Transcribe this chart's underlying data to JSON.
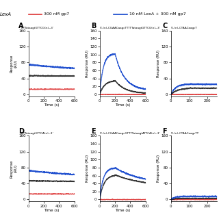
{
  "panels": [
    {
      "label": "A",
      "title": "TTTTataagtGTTCG(n)ₙ-3’",
      "title_left_cut": true,
      "ylim": [
        -5,
        160
      ],
      "yticks": [
        0,
        40,
        80,
        120,
        160
      ],
      "xlim": [
        0,
        600
      ],
      "xticks": [
        0,
        200,
        400,
        600
      ],
      "assoc_end": 200,
      "blue_peak": 75,
      "black_peak": 47,
      "red_level": 13,
      "blue_end": 56,
      "black_end": 45,
      "blue_tau_d": 900,
      "black_tau_d": 1200,
      "blue_tau_a": 55,
      "black_tau_a": 65,
      "show_xlabel": true,
      "show_ylabel": true,
      "ylabel": "Response\n(RU)"
    },
    {
      "label": "B",
      "title": "5’-(n)ₙCGAACaagcTTTTTataagtGTTCG(n)ₙ-3’",
      "title_left_cut": false,
      "ylim": [
        -5,
        160
      ],
      "yticks": [
        0,
        20,
        40,
        60,
        80,
        100,
        120,
        140,
        160
      ],
      "xlim": [
        0,
        600
      ],
      "xticks": [
        0,
        200,
        400,
        600
      ],
      "assoc_end": 200,
      "blue_peak": 103,
      "black_peak": 35,
      "red_level": 0,
      "blue_end": 10,
      "black_end": 2,
      "blue_tau_d": 120,
      "black_tau_d": 130,
      "blue_tau_a": 45,
      "black_tau_a": 60,
      "show_xlabel": true,
      "show_ylabel": true,
      "ylabel": "Response (RU)"
    },
    {
      "label": "C",
      "title": "5’-(n)ₙCTAACaagcT",
      "title_left_cut": false,
      "ylim": [
        -5,
        160
      ],
      "yticks": [
        0,
        40,
        80,
        120,
        160
      ],
      "xlim": [
        0,
        250
      ],
      "xticks": [
        0,
        100,
        200
      ],
      "assoc_end": 100,
      "blue_peak": 26,
      "black_peak": 16,
      "red_level": 0,
      "blue_end": 22,
      "black_end": 13,
      "blue_tau_d": 900,
      "black_tau_d": 1200,
      "blue_tau_a": 25,
      "black_tau_a": 35,
      "show_xlabel": false,
      "show_ylabel": true,
      "ylabel": "Response (RU)"
    },
    {
      "label": "D",
      "title": "TTTTataagtGTTCA(n)ₙ-3’",
      "title_left_cut": true,
      "ylim": [
        -5,
        160
      ],
      "yticks": [
        0,
        40,
        80,
        120,
        160
      ],
      "xlim": [
        0,
        600
      ],
      "xticks": [
        0,
        200,
        400,
        600
      ],
      "assoc_end": 200,
      "blue_peak": 73,
      "black_peak": 47,
      "red_level": 14,
      "blue_end": 52,
      "black_end": 44,
      "blue_tau_d": 900,
      "black_tau_d": 1200,
      "blue_tau_a": 55,
      "black_tau_a": 65,
      "show_xlabel": true,
      "show_ylabel": true,
      "ylabel": "Response\n(RU)"
    },
    {
      "label": "E",
      "title": "5’-(n)ₙCGAACaagcGTTTTataagtATTCA(n)ₙ-3’",
      "title_left_cut": false,
      "ylim": [
        -5,
        160
      ],
      "yticks": [
        0,
        20,
        40,
        60,
        80,
        100,
        120,
        140,
        160
      ],
      "xlim": [
        0,
        600
      ],
      "xticks": [
        0,
        200,
        400,
        600
      ],
      "assoc_end": 200,
      "blue_peak": 80,
      "black_peak": 62,
      "red_level": 0,
      "blue_end": 38,
      "black_end": 31,
      "blue_tau_d": 350,
      "black_tau_d": 400,
      "blue_tau_a": 45,
      "black_tau_a": 55,
      "show_xlabel": true,
      "show_ylabel": true,
      "ylabel": "Response (RU)"
    },
    {
      "label": "F",
      "title": "5’-(n)ₙCTAACaagcTT",
      "title_left_cut": false,
      "ylim": [
        -5,
        160
      ],
      "yticks": [
        0,
        40,
        80,
        120,
        160
      ],
      "xlim": [
        0,
        250
      ],
      "xticks": [
        0,
        100,
        200
      ],
      "assoc_end": 100,
      "blue_peak": 8,
      "black_peak": 3,
      "red_level": 0,
      "blue_end": 7,
      "black_end": 2,
      "blue_tau_d": 900,
      "black_tau_d": 1200,
      "blue_tau_a": 20,
      "black_tau_a": 25,
      "show_xlabel": false,
      "show_ylabel": true,
      "ylabel": "Response (RU)"
    }
  ],
  "blue_color": "#1144cc",
  "black_color": "#222222",
  "red_color": "#dd3333",
  "bg_color": "#ffffff"
}
